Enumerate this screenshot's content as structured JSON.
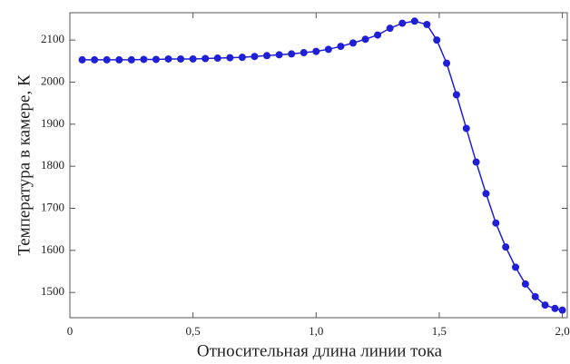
{
  "chart_data": {
    "type": "line",
    "x_label": "Относительная длина линии тока",
    "y_label": "Температура в камере, К",
    "x": [
      0.05,
      0.1,
      0.15,
      0.2,
      0.25,
      0.3,
      0.35,
      0.4,
      0.45,
      0.5,
      0.55,
      0.6,
      0.65,
      0.7,
      0.75,
      0.8,
      0.85,
      0.9,
      0.95,
      1.0,
      1.05,
      1.1,
      1.15,
      1.2,
      1.25,
      1.3,
      1.35,
      1.4,
      1.45,
      1.49,
      1.53,
      1.57,
      1.61,
      1.65,
      1.69,
      1.73,
      1.77,
      1.81,
      1.85,
      1.89,
      1.93,
      1.97,
      2.0
    ],
    "series": [
      {
        "color": "#1f1fd6",
        "values": [
          2053,
          2053,
          2053,
          2053,
          2053,
          2054,
          2054,
          2055,
          2055,
          2055,
          2056,
          2057,
          2058,
          2059,
          2061,
          2063,
          2065,
          2067,
          2070,
          2073,
          2078,
          2085,
          2093,
          2102,
          2112,
          2128,
          2140,
          2145,
          2137,
          2100,
          2045,
          1970,
          1890,
          1810,
          1735,
          1665,
          1608,
          1560,
          1520,
          1490,
          1470,
          1462,
          1458
        ]
      }
    ],
    "xlim": [
      0,
      2.02
    ],
    "ylim": [
      1440,
      2165
    ],
    "xticks": [
      0,
      {
        "value": 0.5,
        "label": "0,5"
      },
      {
        "value": 1.0,
        "label": "1,0"
      },
      {
        "value": 1.5,
        "label": "1,5"
      },
      {
        "value": 2.0,
        "label": "2,0"
      }
    ],
    "yticks": [
      1500,
      1600,
      1700,
      1800,
      1900,
      2000,
      2100
    ]
  }
}
